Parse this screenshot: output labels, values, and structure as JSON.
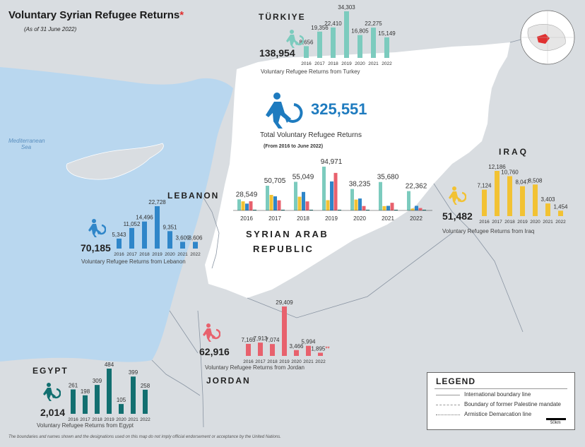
{
  "header": {
    "title": "Voluntary Syrian Refugee Returns",
    "title_mark": "*",
    "subtitle": "(As of 31 June 2022)"
  },
  "sea_label": [
    "Mediterranean",
    "Sea"
  ],
  "colors": {
    "sea": "#b9d7ef",
    "land": "#d9dde1",
    "syria": "#ffffff",
    "turkey": "#7ccbbe",
    "lebanon": "#2f86c9",
    "iraq": "#f2c233",
    "jordan": "#e8616d",
    "egypt": "#126f70",
    "total_icon": "#1e7bbf"
  },
  "total": {
    "value": "325,551",
    "label": "Total Voluntary Refugee Returns",
    "sub": "(From 2016 to June 2022)",
    "icon": "person-returning-icon"
  },
  "syria_label": [
    "SYRIAN ARAB",
    "REPUBLIC"
  ],
  "syria_chart": {
    "years": [
      "2016",
      "2017",
      "2018",
      "2019",
      "2020",
      "2021",
      "2022"
    ],
    "totals": [
      "28,549",
      "50,705",
      "55,049",
      "94,971",
      "38,235",
      "35,680",
      "22,362"
    ],
    "total_values": [
      28549,
      50705,
      55049,
      94971,
      38235,
      35680,
      22362
    ],
    "series": [
      {
        "color": "#7ccbbe",
        "values": [
          8656,
          19356,
          22410,
          34303,
          16805,
          22275,
          15149
        ]
      },
      {
        "color": "#f2c233",
        "values": [
          7124,
          12186,
          10760,
          8047,
          8508,
          3403,
          1454
        ]
      },
      {
        "color": "#2f86c9",
        "values": [
          5343,
          11052,
          14496,
          22728,
          9351,
          3609,
          3606
        ]
      },
      {
        "color": "#e8616d",
        "values": [
          7165,
          7913,
          7074,
          29409,
          3466,
          5994,
          1895
        ]
      },
      {
        "color": "#126f70",
        "values": [
          261,
          198,
          309,
          484,
          105,
          399,
          258
        ]
      }
    ]
  },
  "countries": {
    "turkey": {
      "name": "TÜRKIYE",
      "total": "138,954",
      "caption": "Voluntary Refugee Returns from Turkey",
      "years": [
        "2016",
        "2017",
        "2018",
        "2019",
        "2020",
        "2021",
        "2022"
      ],
      "labels": [
        "8,656",
        "19,356",
        "22,410",
        "34,303",
        "16,805",
        "22,275",
        "15,149"
      ],
      "values": [
        8656,
        19356,
        22410,
        34303,
        16805,
        22275,
        15149
      ]
    },
    "lebanon": {
      "name": "LEBANON",
      "total": "70,185",
      "caption": "Voluntary Refugee Returns from Lebanon",
      "years": [
        "2016",
        "2017",
        "2018",
        "2019",
        "2020",
        "2021",
        "2022"
      ],
      "labels": [
        "5,343",
        "11,052",
        "14,496",
        "22,728",
        "9,351",
        "3,609",
        "3,606"
      ],
      "values": [
        5343,
        11052,
        14496,
        22728,
        9351,
        3609,
        3606
      ]
    },
    "iraq": {
      "name": "IRAQ",
      "total": "51,482",
      "caption": "Voluntary Refugee Returns from Iraq",
      "years": [
        "2016",
        "2017",
        "2018",
        "2019",
        "2020",
        "2021",
        "2022"
      ],
      "labels": [
        "7,124",
        "12,186",
        "10,760",
        "8,047",
        "8,508",
        "3,403",
        "1,454"
      ],
      "values": [
        7124,
        12186,
        10760,
        8047,
        8508,
        3403,
        1454
      ]
    },
    "jordan": {
      "name": "JORDAN",
      "total": "62,916",
      "caption": "Voluntary Refugee Returns from Jordan",
      "years": [
        "2016",
        "2017",
        "2018",
        "2019",
        "2020",
        "2021",
        "2022"
      ],
      "labels": [
        "7,165",
        "7,913",
        "7,074",
        "29,409",
        "3,466",
        "5,994",
        "1,895"
      ],
      "last_mark": "**",
      "values": [
        7165,
        7913,
        7074,
        29409,
        3466,
        5994,
        1895
      ]
    },
    "egypt": {
      "name": "EGYPT",
      "total": "2,014",
      "caption": "Voluntary Refugee Returns from Egypt",
      "years": [
        "2016",
        "2017",
        "2018",
        "2019",
        "2020",
        "2021",
        "2022"
      ],
      "labels": [
        "261",
        "198",
        "309",
        "484",
        "105",
        "399",
        "258"
      ],
      "values": [
        261,
        198,
        309,
        484,
        105,
        399,
        258
      ]
    }
  },
  "legend": {
    "title": "LEGEND",
    "items": [
      "International boundary line",
      "Boundary of former Palestine mandate",
      "Armistice Demarcation line"
    ],
    "scale": "50km"
  },
  "footer": "The boundaries and names shown and the designations used on this map do not imply official endorsement or acceptance by the United Nations."
}
